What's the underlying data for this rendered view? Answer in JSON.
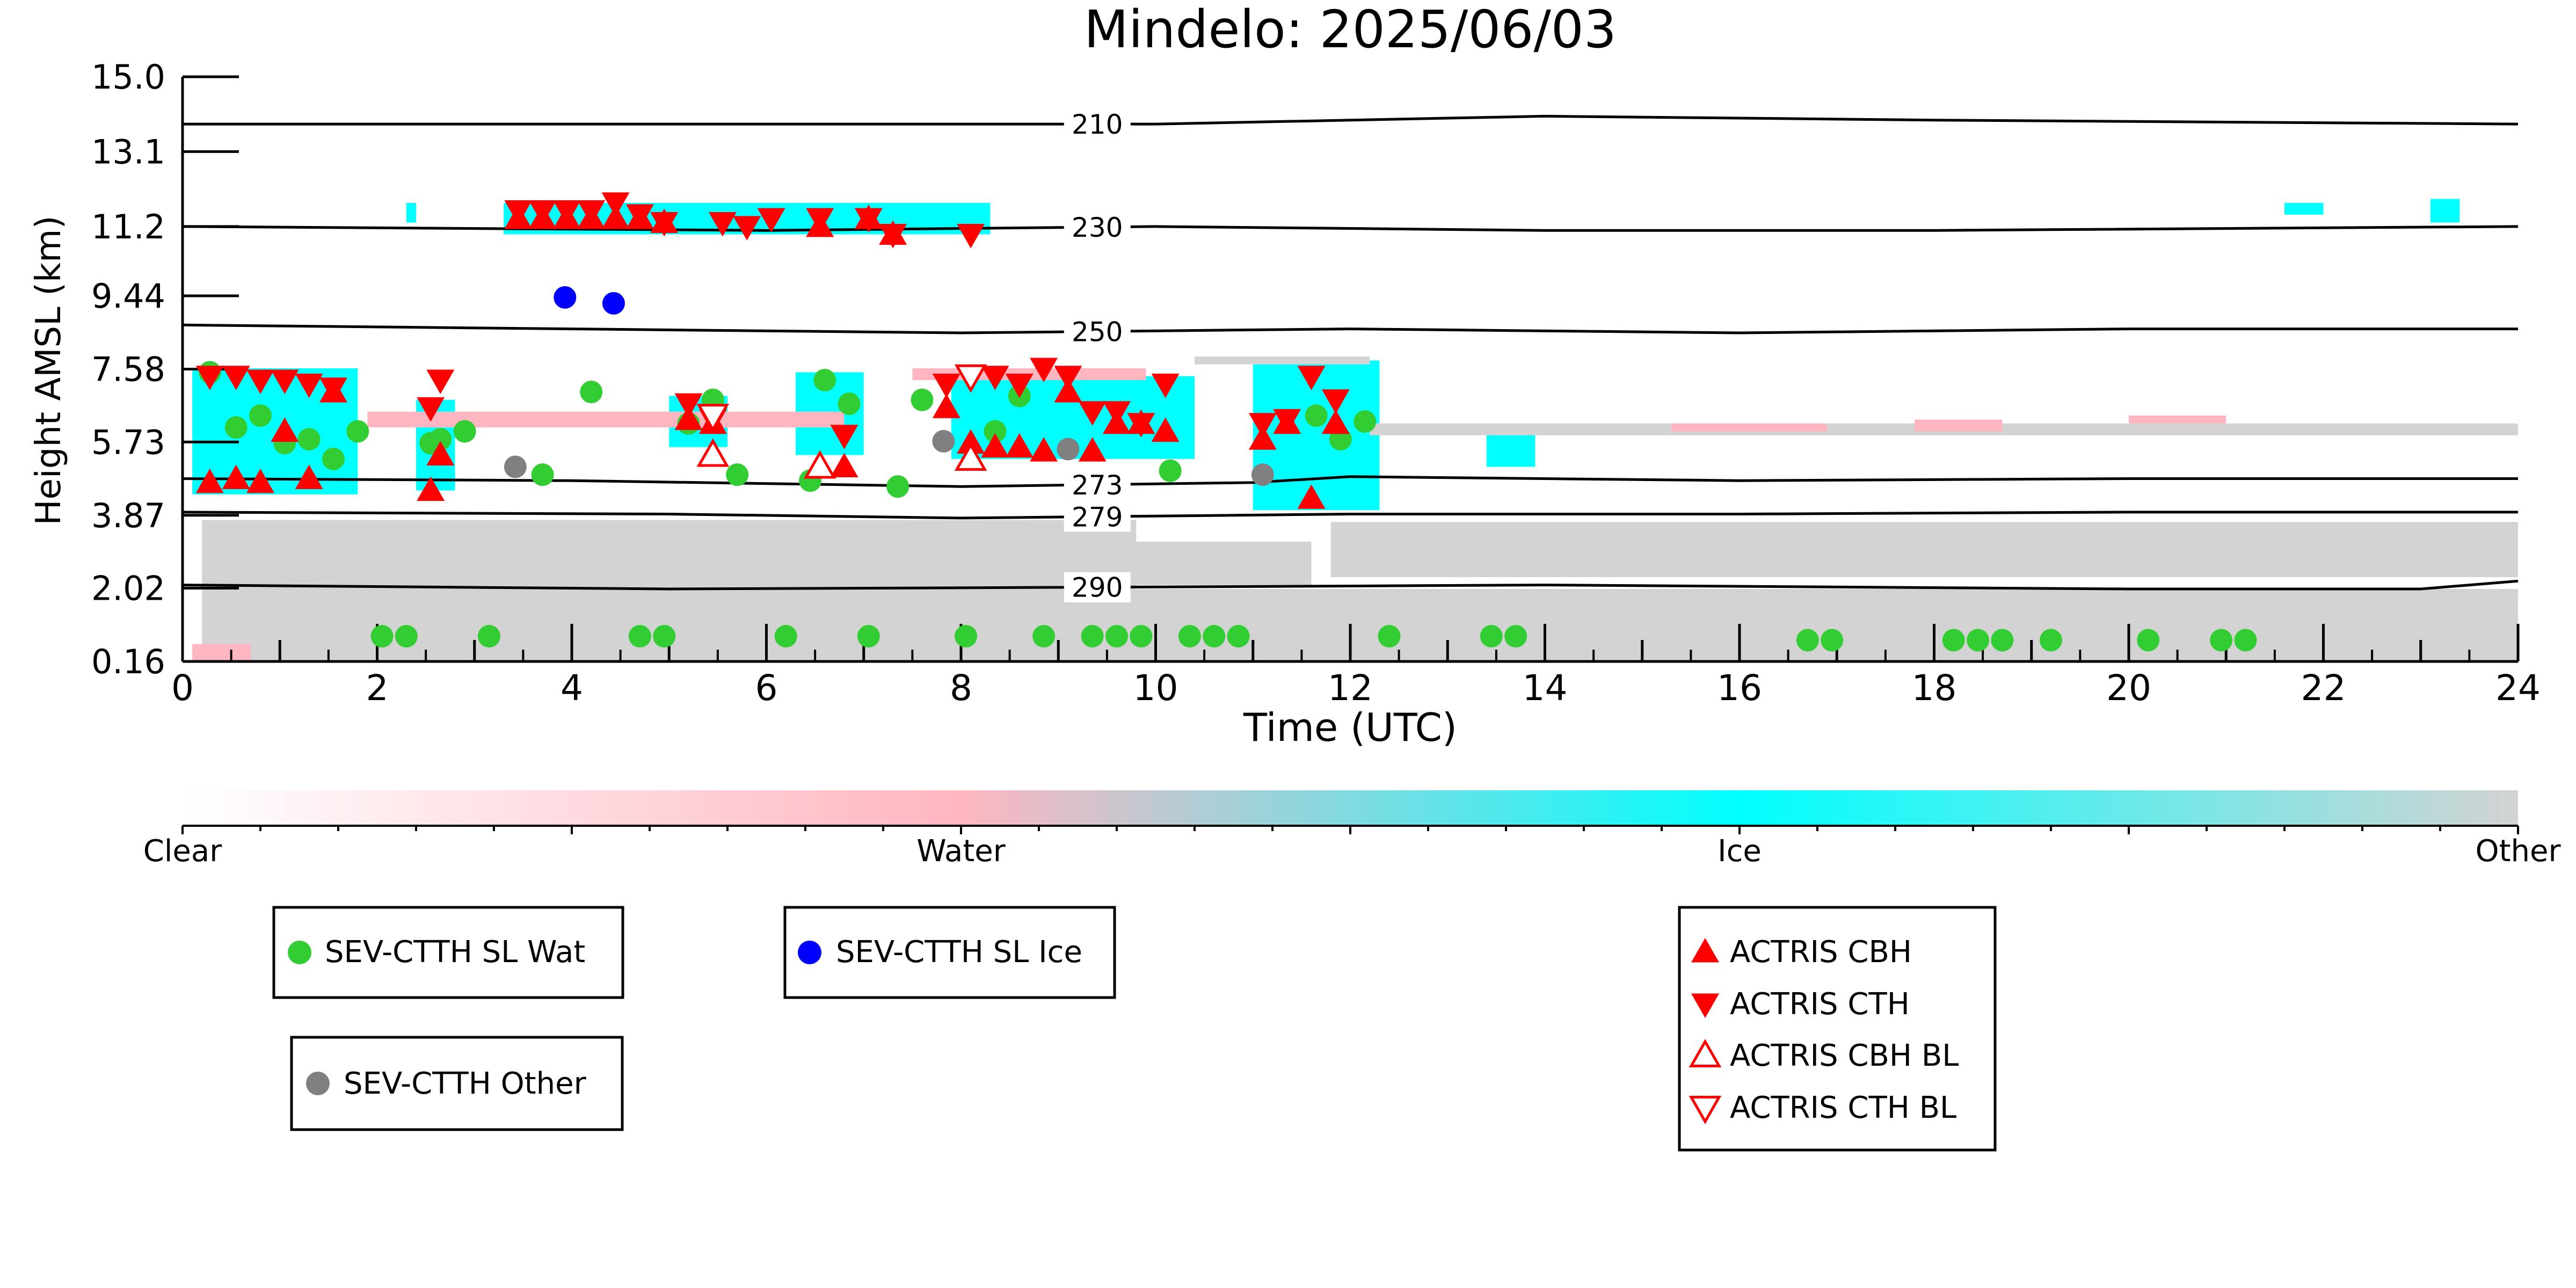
{
  "chart_data": {
    "type": "scatter",
    "title": "Mindelo: 2025/06/03",
    "xlabel": "Time (UTC)",
    "ylabel": "Height AMSL (km)",
    "xlim": [
      0,
      24
    ],
    "ylim": [
      0.16,
      15.0
    ],
    "x_ticks": [
      "0",
      "2",
      "4",
      "6",
      "8",
      "10",
      "12",
      "14",
      "16",
      "18",
      "20",
      "22",
      "24"
    ],
    "y_ticks": [
      "0.16",
      "2.02",
      "3.87",
      "5.73",
      "7.58",
      "9.44",
      "11.2",
      "13.1",
      "15.0"
    ],
    "colors": {
      "clear": "#ffffff",
      "water": "#ffb6c1",
      "ice": "#00ffff",
      "other": "#d3d3d3",
      "wat": "#32cd32",
      "ice_pt": "#0000ff",
      "gray_pt": "#808080",
      "actris": "#ff0000"
    },
    "colorbar": {
      "labels": [
        "Clear",
        "Water",
        "Ice",
        "Other"
      ]
    },
    "isotherms": [
      {
        "label": "210",
        "pts": [
          [
            0,
            13.8
          ],
          [
            6,
            13.8
          ],
          [
            10,
            13.8
          ],
          [
            14,
            14.0
          ],
          [
            18,
            13.9
          ],
          [
            24,
            13.8
          ]
        ]
      },
      {
        "label": "230",
        "pts": [
          [
            0,
            11.2
          ],
          [
            6,
            11.1
          ],
          [
            10,
            11.2
          ],
          [
            14,
            11.1
          ],
          [
            18,
            11.1
          ],
          [
            24,
            11.2
          ]
        ]
      },
      {
        "label": "250",
        "pts": [
          [
            0,
            8.7
          ],
          [
            4,
            8.6
          ],
          [
            8,
            8.5
          ],
          [
            12,
            8.6
          ],
          [
            16,
            8.5
          ],
          [
            20,
            8.6
          ],
          [
            24,
            8.6
          ]
        ]
      },
      {
        "label": "273",
        "pts": [
          [
            0,
            4.8
          ],
          [
            4,
            4.75
          ],
          [
            8,
            4.6
          ],
          [
            11,
            4.7
          ],
          [
            12,
            4.85
          ],
          [
            16,
            4.75
          ],
          [
            20,
            4.8
          ],
          [
            24,
            4.8
          ]
        ]
      },
      {
        "label": "279",
        "pts": [
          [
            0,
            3.95
          ],
          [
            5,
            3.9
          ],
          [
            8,
            3.8
          ],
          [
            12,
            3.9
          ],
          [
            16,
            3.9
          ],
          [
            20,
            3.95
          ],
          [
            24,
            3.95
          ]
        ]
      },
      {
        "label": "290",
        "pts": [
          [
            0,
            2.1
          ],
          [
            5,
            2.0
          ],
          [
            10,
            2.05
          ],
          [
            14,
            2.1
          ],
          [
            20,
            2.0
          ],
          [
            23,
            2.0
          ],
          [
            24,
            2.2
          ]
        ]
      }
    ],
    "series": [
      {
        "name": "SEV-CTTH SL Wat",
        "marker": "circle",
        "color": "#32cd32",
        "x": [
          0.28,
          0.55,
          0.8,
          1.05,
          1.3,
          1.55,
          1.8,
          2.05,
          2.3,
          2.55,
          2.65,
          2.9,
          3.15,
          3.7,
          4.2,
          4.7,
          4.95,
          5.2,
          5.45,
          5.7,
          6.2,
          6.45,
          6.6,
          6.85,
          7.05,
          7.35,
          7.6,
          8.05,
          8.35,
          8.6,
          8.85,
          9.35,
          9.6,
          9.85,
          10.15,
          10.35,
          10.6,
          10.85,
          11.65,
          11.9,
          12.15,
          12.4,
          13.45,
          13.7,
          16.7,
          16.95,
          18.2,
          18.45,
          18.7,
          19.2,
          20.2,
          20.95,
          21.2
        ],
        "y": [
          7.5,
          6.1,
          6.4,
          5.7,
          5.8,
          5.3,
          6.0,
          0.8,
          0.8,
          5.7,
          5.8,
          6.0,
          0.8,
          4.9,
          7.0,
          0.8,
          0.8,
          6.2,
          6.8,
          4.9,
          0.8,
          4.75,
          7.3,
          6.7,
          0.8,
          4.6,
          6.8,
          0.8,
          6.0,
          6.9,
          0.8,
          0.8,
          0.8,
          0.8,
          5.0,
          0.8,
          0.8,
          0.8,
          6.4,
          5.8,
          6.25,
          0.8,
          0.8,
          0.8,
          0.7,
          0.7,
          0.7,
          0.7,
          0.7,
          0.7,
          0.7,
          0.7,
          0.7
        ]
      },
      {
        "name": "SEV-CTTH SL Ice",
        "marker": "circle",
        "color": "#0000ff",
        "x": [
          3.93,
          4.43
        ],
        "y": [
          9.4,
          9.25
        ]
      },
      {
        "name": "SEV-CTTH Other",
        "marker": "circle",
        "color": "#808080",
        "x": [
          3.42,
          7.82,
          9.1,
          11.1
        ],
        "y": [
          5.1,
          5.75,
          5.55,
          4.9
        ]
      },
      {
        "name": "ACTRIS CBH",
        "marker": "triangle-up",
        "color": "#ff0000",
        "x": [
          0.28,
          0.55,
          0.8,
          1.05,
          1.3,
          1.55,
          2.55,
          2.65,
          3.45,
          3.7,
          3.95,
          4.2,
          4.45,
          4.7,
          4.95,
          5.2,
          5.45,
          6.55,
          6.8,
          7.05,
          7.3,
          7.85,
          8.1,
          8.35,
          8.6,
          8.85,
          9.1,
          9.35,
          9.6,
          9.85,
          10.1,
          11.1,
          11.35,
          11.6,
          11.85
        ],
        "y": [
          4.7,
          4.8,
          4.7,
          6.0,
          4.8,
          7.0,
          4.5,
          5.4,
          11.4,
          11.4,
          11.4,
          11.4,
          11.4,
          11.4,
          11.3,
          6.3,
          6.2,
          11.2,
          5.1,
          11.4,
          11.0,
          6.6,
          5.7,
          5.6,
          5.6,
          5.5,
          7.0,
          5.5,
          6.2,
          6.2,
          6.0,
          5.8,
          6.2,
          4.3,
          6.2
        ]
      },
      {
        "name": "ACTRIS CTH",
        "marker": "triangle-down",
        "color": "#ff0000",
        "x": [
          0.28,
          0.55,
          0.8,
          1.05,
          1.3,
          1.55,
          2.55,
          2.65,
          3.45,
          3.7,
          3.95,
          4.2,
          4.45,
          4.7,
          4.95,
          5.2,
          5.45,
          6.55,
          6.8,
          7.05,
          7.3,
          7.85,
          8.1,
          8.35,
          8.6,
          8.85,
          9.1,
          9.35,
          9.6,
          9.85,
          10.1,
          11.1,
          11.35,
          11.6,
          11.85,
          5.55,
          5.8,
          6.05,
          8.1
        ],
        "y": [
          7.4,
          7.4,
          7.3,
          7.3,
          7.2,
          7.1,
          6.6,
          7.3,
          11.6,
          11.6,
          11.6,
          11.6,
          11.8,
          11.5,
          11.3,
          6.7,
          6.3,
          11.4,
          5.9,
          11.4,
          11.0,
          7.2,
          7.4,
          7.4,
          7.2,
          7.6,
          7.4,
          6.5,
          6.5,
          6.2,
          7.2,
          6.2,
          6.3,
          7.4,
          6.8,
          11.3,
          11.2,
          11.4,
          11.0
        ]
      },
      {
        "name": "ACTRIS CBH BL",
        "marker": "triangle-up-open",
        "color": "#ff0000",
        "x": [
          5.45,
          6.55,
          8.1
        ],
        "y": [
          5.4,
          5.1,
          5.3
        ]
      },
      {
        "name": "ACTRIS CTH BL",
        "marker": "triangle-down-open",
        "color": "#ff0000",
        "x": [
          5.45,
          8.1
        ],
        "y": [
          6.4,
          7.4
        ]
      }
    ]
  }
}
